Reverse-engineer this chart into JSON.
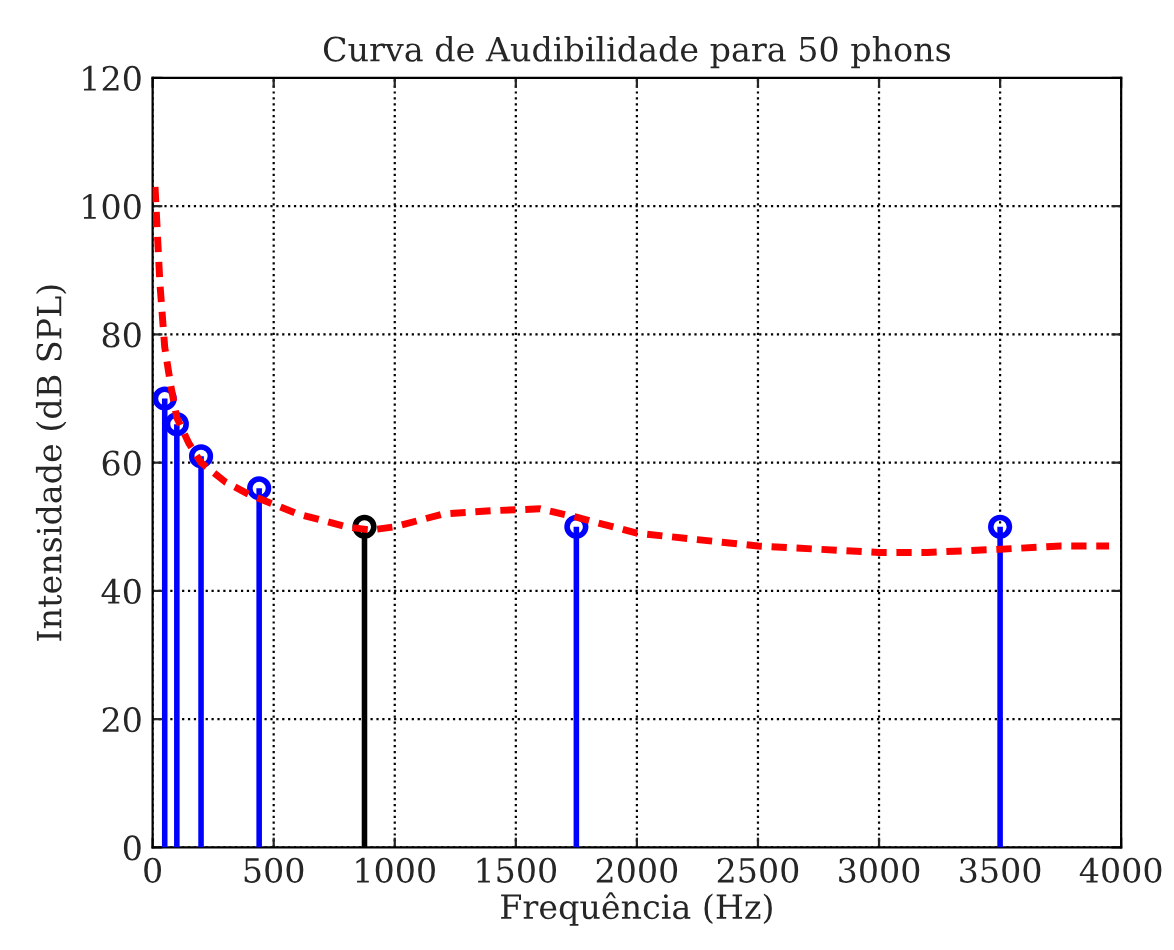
{
  "chart_data": {
    "type": "lollipop",
    "title": "Curva de Audibilidade para 50 phons",
    "xlabel": "Frequência (Hz)",
    "ylabel": "Intensidade (dB SPL)",
    "xlim": [
      0,
      4000
    ],
    "ylim": [
      0,
      120
    ],
    "xticks": [
      0,
      500,
      1000,
      1500,
      2000,
      2500,
      3000,
      3500,
      4000
    ],
    "yticks": [
      0,
      20,
      40,
      60,
      80,
      100,
      120
    ],
    "grid": true,
    "marker": "circle",
    "series": [
      {
        "color": "#0000ff",
        "x": [
          50,
          100,
          200,
          440,
          1750,
          3500
        ],
        "values": [
          70,
          66,
          61,
          56,
          50,
          50
        ]
      },
      {
        "color": "#000000",
        "x": [
          875
        ],
        "values": [
          50
        ]
      },
      {
        "type": "line",
        "color": "#ff0000",
        "line_style": "dashed",
        "marker": "none",
        "x": [
          10,
          30,
          50,
          75,
          100,
          150,
          200,
          300,
          400,
          500,
          600,
          700,
          800,
          900,
          1000,
          1100,
          1200,
          1400,
          1600,
          1750,
          2000,
          2250,
          2500,
          2750,
          3000,
          3200,
          3500,
          3750,
          3950
        ],
        "values": [
          103,
          88,
          78,
          72,
          67,
          63,
          60,
          57,
          55,
          53.5,
          52,
          51,
          50,
          49.5,
          50,
          51,
          52,
          52.5,
          52.8,
          51.5,
          49,
          48,
          47,
          46.5,
          46,
          46,
          46.5,
          47,
          47
        ]
      }
    ]
  }
}
